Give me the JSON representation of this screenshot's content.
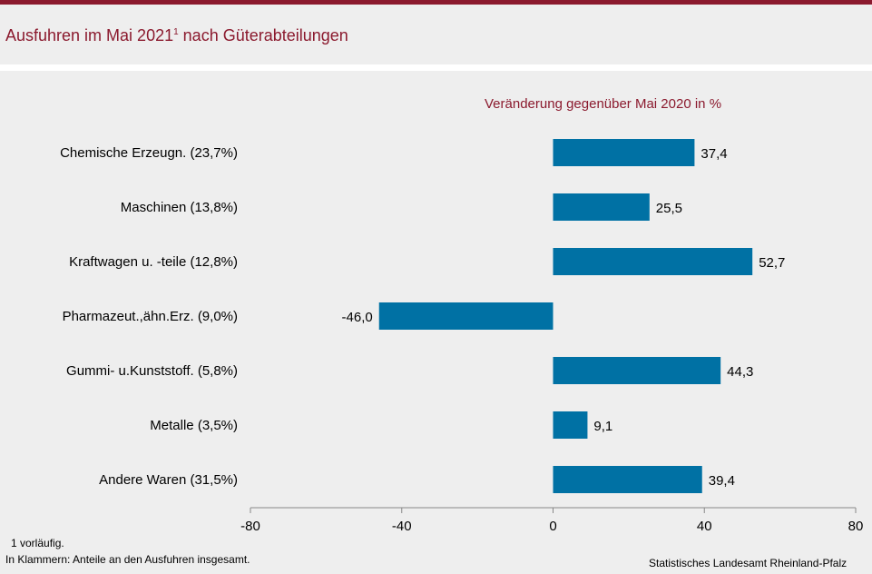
{
  "title": {
    "text": "Ausfuhren im Mai 2021",
    "superscript": "1",
    "text_after": " nach Güterabteilungen"
  },
  "chart_data": {
    "type": "bar",
    "orientation": "horizontal",
    "title": "Veränderung  gegenüber  Mai 2020  in  %",
    "categories": [
      "Chemische Erzeugn. (23,7%)",
      "Maschinen (13,8%)",
      "Kraftwagen u. -teile (12,8%)",
      "Pharmazeut.,ähn.Erz. (9,0%)",
      "Gummi- u.Kunststoff. (5,8%)",
      "Metalle (3,5%)",
      "Andere Waren (31,5%)"
    ],
    "values": [
      37.4,
      25.5,
      52.7,
      -46.0,
      44.3,
      9.1,
      39.4
    ],
    "value_labels": [
      "37,4",
      "25,5",
      "52,7",
      "-46,0",
      "44,3",
      "9,1",
      "39,4"
    ],
    "xlim": [
      -80,
      80
    ],
    "xticks": [
      -80,
      -40,
      0,
      40,
      80
    ],
    "xtick_labels": [
      "-80",
      "-40",
      "0",
      "40",
      "80"
    ],
    "grid": false,
    "bar_color": "#0071a4"
  },
  "footnotes": {
    "note1": "1 vorläufig.",
    "note2": "In Klammern:  Anteile an den Ausfuhren  insgesamt."
  },
  "source": "Statistisches Landesamt  Rheinland-Pfalz"
}
